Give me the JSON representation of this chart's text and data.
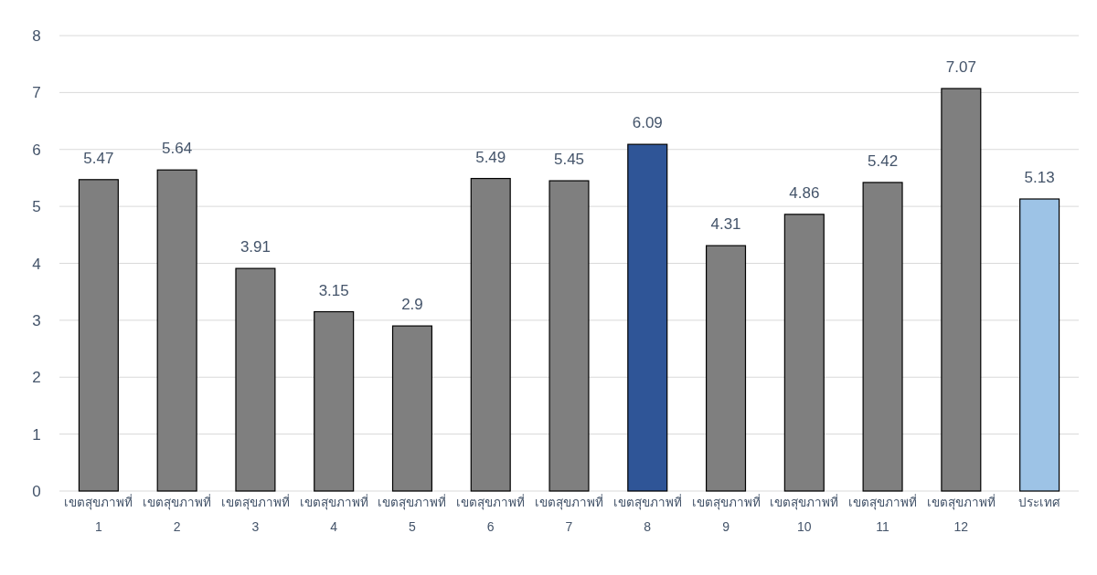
{
  "chart_data": {
    "type": "bar",
    "categories": [
      "เขตสุขภาพที่\n1",
      "เขตสุขภาพที่\n2",
      "เขตสุขภาพที่\n3",
      "เขตสุขภาพที่\n4",
      "เขตสุขภาพที่\n5",
      "เขตสุขภาพที่\n6",
      "เขตสุขภาพที่\n7",
      "เขตสุขภาพที่\n8",
      "เขตสุขภาพที่\n9",
      "เขตสุขภาพที่\n10",
      "เขตสุขภาพที่\n11",
      "เขตสุขภาพที่\n12",
      "ประเทศ"
    ],
    "values": [
      5.47,
      5.64,
      3.91,
      3.15,
      2.9,
      5.49,
      5.45,
      6.09,
      4.31,
      4.86,
      5.42,
      7.07,
      5.13
    ],
    "colors": [
      "#7f7f7f",
      "#7f7f7f",
      "#7f7f7f",
      "#7f7f7f",
      "#7f7f7f",
      "#7f7f7f",
      "#7f7f7f",
      "#2f5597",
      "#7f7f7f",
      "#7f7f7f",
      "#7f7f7f",
      "#7f7f7f",
      "#9dc3e6"
    ],
    "ylim": [
      0,
      8
    ],
    "yticks": [
      0,
      1,
      2,
      3,
      4,
      5,
      6,
      7,
      8
    ],
    "grid": "y",
    "data_labels": true
  }
}
